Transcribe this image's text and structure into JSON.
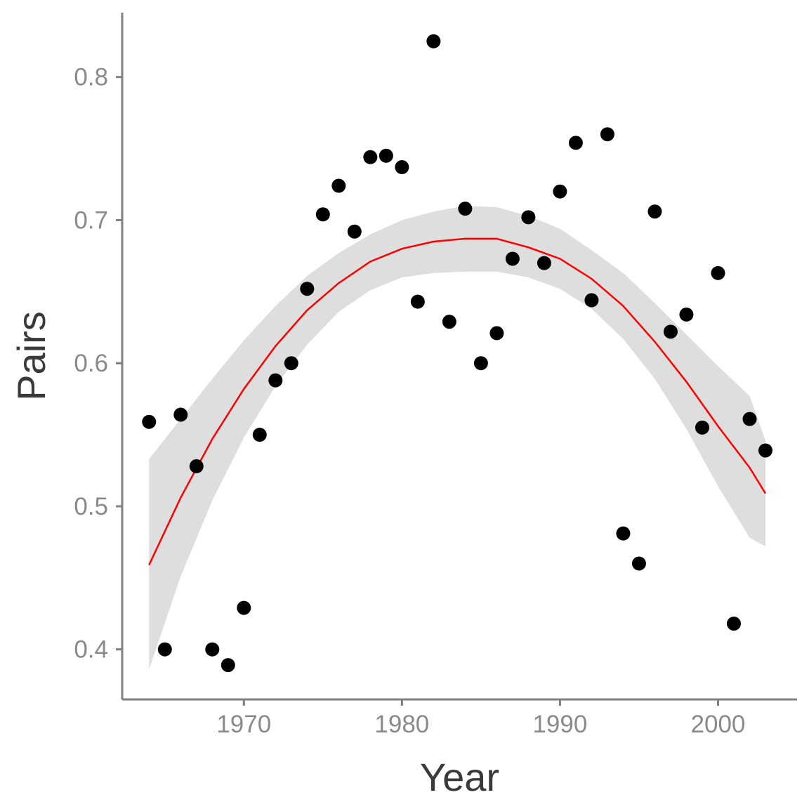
{
  "chart_data": {
    "type": "scatter",
    "title": "",
    "xlabel": "Year",
    "ylabel": "Pairs",
    "xlim": [
      1962.3,
      2005.0
    ],
    "ylim": [
      0.365,
      0.845
    ],
    "x_ticks": [
      1970,
      1980,
      1990,
      2000
    ],
    "y_ticks": [
      0.4,
      0.5,
      0.6,
      0.7,
      0.8
    ],
    "x_tick_labels": [
      "1970",
      "1980",
      "1990",
      "2000"
    ],
    "y_tick_labels": [
      "0.4",
      "0.5",
      "0.6",
      "0.7",
      "0.8"
    ],
    "grid": false,
    "legend": "none",
    "series": [
      {
        "points": [
          {
            "x": 1964,
            "y": 0.559
          },
          {
            "x": 1965,
            "y": 0.4
          },
          {
            "x": 1966,
            "y": 0.564
          },
          {
            "x": 1967,
            "y": 0.528
          },
          {
            "x": 1968,
            "y": 0.4
          },
          {
            "x": 1969,
            "y": 0.389
          },
          {
            "x": 1970,
            "y": 0.429
          },
          {
            "x": 1971,
            "y": 0.55
          },
          {
            "x": 1972,
            "y": 0.588
          },
          {
            "x": 1973,
            "y": 0.6
          },
          {
            "x": 1974,
            "y": 0.652
          },
          {
            "x": 1975,
            "y": 0.704
          },
          {
            "x": 1976,
            "y": 0.724
          },
          {
            "x": 1977,
            "y": 0.692
          },
          {
            "x": 1978,
            "y": 0.744
          },
          {
            "x": 1979,
            "y": 0.745
          },
          {
            "x": 1980,
            "y": 0.737
          },
          {
            "x": 1981,
            "y": 0.643
          },
          {
            "x": 1982,
            "y": 0.825
          },
          {
            "x": 1983,
            "y": 0.629
          },
          {
            "x": 1984,
            "y": 0.708
          },
          {
            "x": 1985,
            "y": 0.6
          },
          {
            "x": 1986,
            "y": 0.621
          },
          {
            "x": 1987,
            "y": 0.673
          },
          {
            "x": 1988,
            "y": 0.702
          },
          {
            "x": 1989,
            "y": 0.67
          },
          {
            "x": 1990,
            "y": 0.72
          },
          {
            "x": 1991,
            "y": 0.754
          },
          {
            "x": 1992,
            "y": 0.644
          },
          {
            "x": 1993,
            "y": 0.76
          },
          {
            "x": 1994,
            "y": 0.481
          },
          {
            "x": 1995,
            "y": 0.46
          },
          {
            "x": 1996,
            "y": 0.706
          },
          {
            "x": 1997,
            "y": 0.622
          },
          {
            "x": 1998,
            "y": 0.634
          },
          {
            "x": 1999,
            "y": 0.555
          },
          {
            "x": 2000,
            "y": 0.663
          },
          {
            "x": 2001,
            "y": 0.418
          },
          {
            "x": 2002,
            "y": 0.561
          },
          {
            "x": 2003,
            "y": 0.539
          }
        ],
        "color": "#000000"
      }
    ],
    "fit": {
      "type": "quadratic",
      "color": "#ff0000",
      "points": [
        {
          "x": 1964,
          "y": 0.459,
          "lower": 0.386,
          "upper": 0.533
        },
        {
          "x": 1966,
          "y": 0.506,
          "lower": 0.451,
          "upper": 0.561
        },
        {
          "x": 1968,
          "y": 0.547,
          "lower": 0.504,
          "upper": 0.589
        },
        {
          "x": 1970,
          "y": 0.582,
          "lower": 0.548,
          "upper": 0.616
        },
        {
          "x": 1972,
          "y": 0.612,
          "lower": 0.584,
          "upper": 0.64
        },
        {
          "x": 1974,
          "y": 0.637,
          "lower": 0.613,
          "upper": 0.661
        },
        {
          "x": 1976,
          "y": 0.656,
          "lower": 0.636,
          "upper": 0.677
        },
        {
          "x": 1978,
          "y": 0.671,
          "lower": 0.651,
          "upper": 0.69
        },
        {
          "x": 1980,
          "y": 0.68,
          "lower": 0.66,
          "upper": 0.7
        },
        {
          "x": 1982,
          "y": 0.685,
          "lower": 0.663,
          "upper": 0.706
        },
        {
          "x": 1984,
          "y": 0.687,
          "lower": 0.664,
          "upper": 0.71
        },
        {
          "x": 1986,
          "y": 0.687,
          "lower": 0.664,
          "upper": 0.709
        },
        {
          "x": 1988,
          "y": 0.681,
          "lower": 0.66,
          "upper": 0.703
        },
        {
          "x": 1990,
          "y": 0.673,
          "lower": 0.652,
          "upper": 0.694
        },
        {
          "x": 1992,
          "y": 0.659,
          "lower": 0.638,
          "upper": 0.679
        },
        {
          "x": 1994,
          "y": 0.64,
          "lower": 0.617,
          "upper": 0.663
        },
        {
          "x": 1996,
          "y": 0.615,
          "lower": 0.589,
          "upper": 0.642
        },
        {
          "x": 1998,
          "y": 0.587,
          "lower": 0.554,
          "upper": 0.62
        },
        {
          "x": 2000,
          "y": 0.556,
          "lower": 0.514,
          "upper": 0.598
        },
        {
          "x": 2002,
          "y": 0.527,
          "lower": 0.478,
          "upper": 0.577
        },
        {
          "x": 2003,
          "y": 0.509,
          "lower": 0.472,
          "upper": 0.546
        }
      ],
      "band_color": "#dedede"
    },
    "axis_color": "#808080"
  }
}
